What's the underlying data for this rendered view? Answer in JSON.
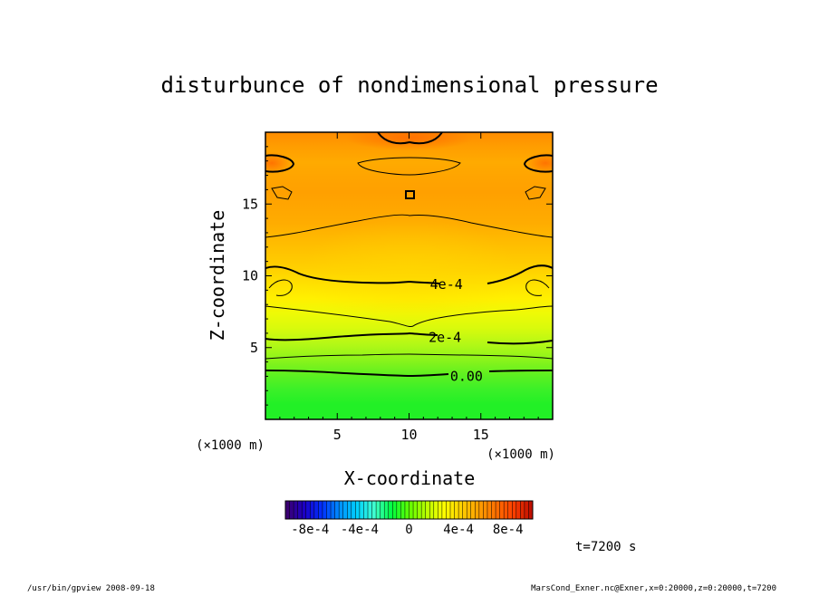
{
  "chart_data": {
    "type": "heatmap",
    "title": "disturbunce of nondimensional pressure",
    "xlabel": "X-coordinate",
    "ylabel": "Z-coordinate",
    "xunit": "(×1000 m)",
    "yunit": "(×1000 m)",
    "xlim": [
      0,
      20
    ],
    "ylim": [
      0,
      20
    ],
    "xticks": [
      5,
      10,
      15
    ],
    "yticks": [
      5,
      10,
      15
    ],
    "contour_labels": [
      {
        "text": "4e-4",
        "x": 12.6,
        "z": 9.4
      },
      {
        "text": "2e-4",
        "x": 12.5,
        "z": 5.7
      },
      {
        "text": "0.00",
        "x": 14.0,
        "z": 3.0
      }
    ],
    "colorbar": {
      "min": -0.001,
      "max": 0.001,
      "tick_labels": [
        "-8e-4",
        "-4e-4",
        "0",
        "4e-4",
        "8e-4"
      ],
      "colors": [
        "#3b0073",
        "#1a00c8",
        "#0030ff",
        "#0090ff",
        "#00d0ff",
        "#40ffd0",
        "#00ff40",
        "#60ff00",
        "#b8ff00",
        "#ffff00",
        "#ffd000",
        "#ffa000",
        "#ff7000",
        "#ff4000",
        "#c01000"
      ]
    },
    "profile_colors_bottom_to_top": [
      "#22f026",
      "#22f026",
      "#3cf028",
      "#60f020",
      "#8ef41a",
      "#b4f816",
      "#d8fa0c",
      "#eefa06",
      "#fff000",
      "#ffe000",
      "#ffd000",
      "#ffc400",
      "#ffb800",
      "#ffac00",
      "#ffa600",
      "#ffa000",
      "#ffa400",
      "#ffaa00",
      "#ff9e00",
      "#ff8c00"
    ],
    "time_label": "t=7200 s"
  },
  "footer": {
    "left": "/usr/bin/gpview   2008-09-18",
    "right": "MarsCond_Exner.nc@Exner,x=0:20000,z=0:20000,t=7200"
  }
}
